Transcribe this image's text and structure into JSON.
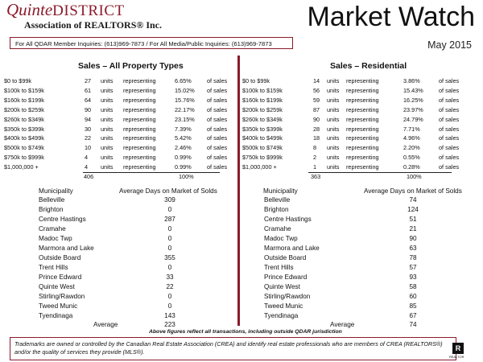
{
  "header": {
    "logo_quinte": "Quinte",
    "logo_district": "DISTRICT",
    "logo_assoc": "Association of REALTORS® Inc.",
    "title": "Market Watch",
    "period": "May 2015",
    "inquiries": "For All QDAR Member Inquiries: (613)969-7873 / For All Media/Public Inquiries: (613)969-7873"
  },
  "all_types": {
    "title": "Sales – All Property Types",
    "rows": [
      {
        "range": "$0 to $99k",
        "count": "27",
        "units": "units",
        "rep": "representing",
        "pct": "6.65%",
        "of": "of sales"
      },
      {
        "range": "$100k to $159k",
        "count": "61",
        "units": "units",
        "rep": "representing",
        "pct": "15.02%",
        "of": "of sales"
      },
      {
        "range": "$160k to $199k",
        "count": "64",
        "units": "units",
        "rep": "representing",
        "pct": "15.76%",
        "of": "of sales"
      },
      {
        "range": "$200k to $259k",
        "count": "90",
        "units": "units",
        "rep": "representing",
        "pct": "22.17%",
        "of": "of sales"
      },
      {
        "range": "$260k to $349k",
        "count": "94",
        "units": "units",
        "rep": "representing",
        "pct": "23.15%",
        "of": "of sales"
      },
      {
        "range": "$350k to $399k",
        "count": "30",
        "units": "units",
        "rep": "representing",
        "pct": "7.39%",
        "of": "of sales"
      },
      {
        "range": "$400k to $499k",
        "count": "22",
        "units": "units",
        "rep": "representing",
        "pct": "5.42%",
        "of": "of sales"
      },
      {
        "range": "$500k to $749k",
        "count": "10",
        "units": "units",
        "rep": "representing",
        "pct": "2.46%",
        "of": "of sales"
      },
      {
        "range": "$750k to $999k",
        "count": "4",
        "units": "units",
        "rep": "representing",
        "pct": "0.99%",
        "of": "of sales"
      },
      {
        "range": "$1,000,000 +",
        "count": "4",
        "units": "units",
        "rep": "representing",
        "pct": "0.99%",
        "of": "of sales"
      }
    ],
    "total_count": "406",
    "total_pct": "100%",
    "muni_header": "Municipality",
    "days_header": "Average Days on Market of Solds",
    "municipalities": [
      {
        "name": "Belleville",
        "days": "309"
      },
      {
        "name": "Brighton",
        "days": "0"
      },
      {
        "name": "Centre Hastings",
        "days": "287"
      },
      {
        "name": "Cramahe",
        "days": "0"
      },
      {
        "name": "Madoc Twp",
        "days": "0"
      },
      {
        "name": "Marmora and Lake",
        "days": "0"
      },
      {
        "name": "Outside Board",
        "days": "355"
      },
      {
        "name": "Trent Hills",
        "days": "0"
      },
      {
        "name": "Prince Edward",
        "days": "33"
      },
      {
        "name": "Quinte West",
        "days": "22"
      },
      {
        "name": "Stirling/Rawdon",
        "days": "0"
      },
      {
        "name": "Tweed Munic",
        "days": "0"
      },
      {
        "name": "Tyendinaga",
        "days": "143"
      }
    ],
    "average_label": "Average",
    "average_value": "223"
  },
  "residential": {
    "title": "Sales – Residential",
    "rows": [
      {
        "range": "$0 to $99k",
        "count": "14",
        "units": "units",
        "rep": "representing",
        "pct": "3.86%",
        "of": "of sales"
      },
      {
        "range": "$100k to $159k",
        "count": "56",
        "units": "units",
        "rep": "representing",
        "pct": "15.43%",
        "of": "of sales"
      },
      {
        "range": "$160k to $199k",
        "count": "59",
        "units": "units",
        "rep": "representing",
        "pct": "16.25%",
        "of": "of sales"
      },
      {
        "range": "$200k to $259k",
        "count": "87",
        "units": "units",
        "rep": "representing",
        "pct": "23.97%",
        "of": "of sales"
      },
      {
        "range": "$260k to $349k",
        "count": "90",
        "units": "units",
        "rep": "representing",
        "pct": "24.79%",
        "of": "of sales"
      },
      {
        "range": "$350k to $399k",
        "count": "28",
        "units": "units",
        "rep": "representing",
        "pct": "7.71%",
        "of": "of sales"
      },
      {
        "range": "$400k to $499k",
        "count": "18",
        "units": "units",
        "rep": "representing",
        "pct": "4.96%",
        "of": "of sales"
      },
      {
        "range": "$500k to $749k",
        "count": "8",
        "units": "units",
        "rep": "representing",
        "pct": "2.20%",
        "of": "of sales"
      },
      {
        "range": "$750k to $999k",
        "count": "2",
        "units": "units",
        "rep": "representing",
        "pct": "0.55%",
        "of": "of sales"
      },
      {
        "range": "$1,000,000 +",
        "count": "1",
        "units": "units",
        "rep": "representing",
        "pct": "0.28%",
        "of": "of sales"
      }
    ],
    "total_count": "363",
    "total_pct": "100%",
    "muni_header": "Municipality",
    "days_header": "Average Days on Market of Solds",
    "municipalities": [
      {
        "name": "Belleville",
        "days": "74"
      },
      {
        "name": "Brighton",
        "days": "124"
      },
      {
        "name": "Centre Hastings",
        "days": "51"
      },
      {
        "name": "Cramahe",
        "days": "21"
      },
      {
        "name": "Madoc Twp",
        "days": "90"
      },
      {
        "name": "Marmora and Lake",
        "days": "63"
      },
      {
        "name": "Outside Board",
        "days": "78"
      },
      {
        "name": "Trent Hills",
        "days": "57"
      },
      {
        "name": "Prince Edward",
        "days": "93"
      },
      {
        "name": "Quinte West",
        "days": "58"
      },
      {
        "name": "Stirling/Rawdon",
        "days": "60"
      },
      {
        "name": "Tweed Munic",
        "days": "85"
      },
      {
        "name": "Tyendinaga",
        "days": "67"
      }
    ],
    "average_label": "Average",
    "average_value": "74"
  },
  "footer": {
    "note": "Above figures reflect all transactions, including outside QDAR jurisdiction",
    "disclaimer": "Trademarks are owned or controlled by the Canadian Real Estate Association (CREA) and identify real estate professionals who are members of CREA (REALTORS®) and/or the quality of services they provide (MLS®).",
    "realtor_mark": "R",
    "realtor_text": "REALTOR"
  },
  "colors": {
    "accent": "#8b1a2b"
  }
}
